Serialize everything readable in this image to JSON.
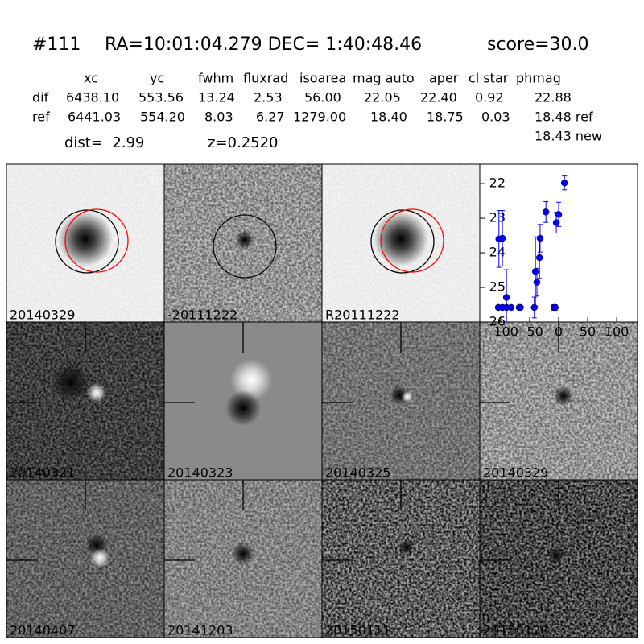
{
  "header": {
    "id": "#111",
    "coords": "RA=10:01:04.279 DEC= 1:40:48.46",
    "score": "score=30.0"
  },
  "table": {
    "columns": [
      "xc",
      "yc",
      "fwhm",
      "fluxrad",
      "isoarea",
      "mag auto",
      "aper",
      "cl star",
      "phmag"
    ],
    "rows": [
      [
        "dif",
        "6438.10",
        "553.56",
        "13.24",
        "2.53",
        "56.00",
        "22.05",
        "22.40",
        "0.92",
        "22.88"
      ],
      [
        "ref",
        "6441.03",
        "554.20",
        "8.03",
        "6.27",
        "1279.00",
        "18.40",
        "18.75",
        "0.03",
        "18.48 ref"
      ]
    ],
    "extra": "18.43 new"
  },
  "dist": "dist=  2.99",
  "z": "z=0.2520",
  "panels": [
    {
      "label": "20140329"
    },
    {
      "label": "-20111222"
    },
    {
      "label": "R20111222"
    },
    {
      "label": "20140321"
    },
    {
      "label": "20140323"
    },
    {
      "label": "20140325"
    },
    {
      "label": "20140329",
      "label_color": "#ff0000"
    },
    {
      "label": "20140407"
    },
    {
      "label": "20141203"
    },
    {
      "label": "20150111"
    },
    {
      "label": "20150128"
    }
  ],
  "chart_data": {
    "type": "errorbar",
    "color": "#0000ff",
    "xlim": [
      -136,
      136
    ],
    "ylim": [
      26,
      21.44
    ],
    "xticks": [
      {
        "value": -100,
        "label": "−100"
      },
      {
        "value": -50,
        "label": "−50"
      },
      0,
      50,
      100
    ],
    "yticks": [
      22,
      23,
      24,
      25,
      26
    ],
    "x": [
      -103,
      -97,
      -104,
      -97,
      -90,
      -90,
      -82,
      -68,
      -66,
      -42,
      -40,
      -37.5,
      -33,
      -32,
      -22,
      -8,
      -6,
      -4,
      0,
      10
    ],
    "values": [
      23.6,
      23.58,
      25.58,
      25.58,
      25.29,
      25.58,
      25.58,
      25.58,
      25.58,
      25.58,
      24.54,
      24.85,
      24.14,
      23.58,
      22.82,
      25.58,
      25.58,
      23.13,
      22.89,
      21.98
    ],
    "errors": [
      0.82,
      0.8,
      0.05,
      0.05,
      0.8,
      0.05,
      0.05,
      0.05,
      0.05,
      0.3,
      1.0,
      0.4,
      0.6,
      0.4,
      0.3,
      0.08,
      0.08,
      0.3,
      0.35,
      0.2
    ]
  }
}
